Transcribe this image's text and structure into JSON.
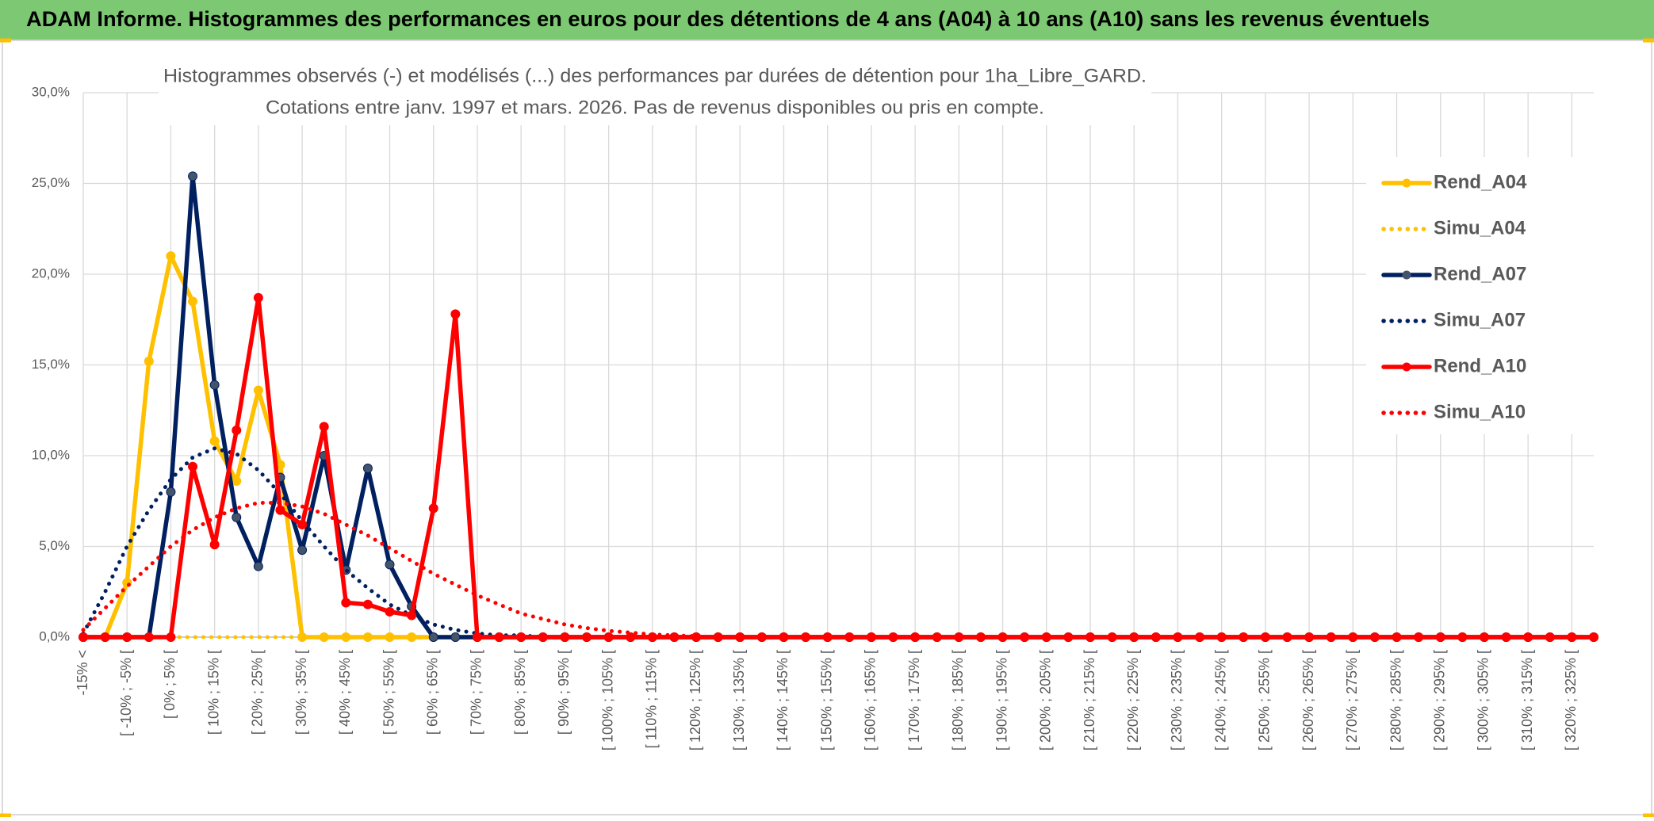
{
  "header": {
    "title": "ADAM Informe. Histogrammes des performances en euros pour des détentions de 4 ans (A04) à 10 ans (A10) sans les revenus éventuels"
  },
  "chart_data": {
    "type": "line",
    "title": "Histogrammes observés (-) et modélisés (...) des performances par durées de détention pour 1ha_Libre_GARD.",
    "subtitle": "Cotations entre janv. 1997 et mars. 2026. Pas de revenus disponibles ou pris en compte.",
    "categories": [
      "-15% <",
      null,
      "[ -10% ; -5% [",
      null,
      "[ 0% ; 5% [",
      null,
      "[ 10% ; 15% [",
      null,
      "[ 20% ; 25% [",
      null,
      "[ 30% ; 35% [",
      null,
      "[ 40% ; 45% [",
      null,
      "[ 50% ; 55% [",
      null,
      "[ 60% ; 65% [",
      null,
      "[ 70% ; 75% [",
      null,
      "[ 80% ; 85% [",
      null,
      "[ 90% ; 95% [",
      null,
      "[ 100% ; 105% [",
      null,
      "[ 110% ; 115% [",
      null,
      "[ 120% ; 125% [",
      null,
      "[ 130% ; 135% [",
      null,
      "[ 140% ; 145% [",
      null,
      "[ 150% ; 155% [",
      null,
      "[ 160% ; 165% [",
      null,
      "[ 170% ; 175% [",
      null,
      "[ 180% ; 185% [",
      null,
      "[ 190% ; 195% [",
      null,
      "[ 200% ; 205% [",
      null,
      "[ 210% ; 215% [",
      null,
      "[ 220% ; 225% [",
      null,
      "[ 230% ; 235% [",
      null,
      "[ 240% ; 245% [",
      null,
      "[ 250% ; 255% [",
      null,
      "[ 260% ; 265% [",
      null,
      "[ 270% ; 275% [",
      null,
      "[ 280% ; 285% [",
      null,
      "[ 290% ; 295% [",
      null,
      "[ 300% ; 305% [",
      null,
      "[ 310% ; 315% [",
      null,
      "[ 320% ; 325% [",
      null
    ],
    "series": [
      {
        "name": "Rend_A04",
        "color": "#FFC000",
        "style": "solid",
        "values": [
          0,
          0,
          3.0,
          15.2,
          21.0,
          18.5,
          10.8,
          8.6,
          13.6,
          9.5,
          0,
          0,
          0,
          0,
          0,
          0,
          0,
          0,
          0,
          0,
          0,
          0,
          0,
          0,
          0,
          0,
          0,
          0,
          0,
          0,
          0,
          0,
          0,
          0,
          0,
          0,
          0,
          0,
          0,
          0,
          0,
          0,
          0,
          0,
          0,
          0,
          0,
          0,
          0,
          0,
          0,
          0,
          0,
          0,
          0,
          0,
          0,
          0,
          0,
          0,
          0,
          0,
          0,
          0,
          0,
          0,
          0,
          0,
          0,
          0
        ]
      },
      {
        "name": "Simu_A04",
        "color": "#FFC000",
        "style": "dotted",
        "values": [
          0,
          0,
          0,
          0,
          0,
          0,
          0,
          0,
          0,
          0,
          0,
          0,
          0,
          0,
          0,
          0,
          0,
          0,
          0,
          0,
          0,
          0,
          0,
          0,
          0,
          0,
          0,
          0,
          0,
          0,
          0,
          0,
          0,
          0,
          0,
          0,
          0,
          0,
          0,
          0,
          0,
          0,
          0,
          0,
          0,
          0,
          0,
          0,
          0,
          0,
          0,
          0,
          0,
          0,
          0,
          0,
          0,
          0,
          0,
          0,
          0,
          0,
          0,
          0,
          0,
          0,
          0,
          0,
          0,
          0
        ]
      },
      {
        "name": "Rend_A07",
        "color": "#002060",
        "style": "solid",
        "values": [
          0,
          0,
          0,
          0,
          8.0,
          25.4,
          13.9,
          6.6,
          3.9,
          8.8,
          4.8,
          10.0,
          3.7,
          9.3,
          4.0,
          1.7,
          0,
          0,
          0,
          0,
          0,
          0,
          0,
          0,
          0,
          0,
          0,
          0,
          0,
          0,
          0,
          0,
          0,
          0,
          0,
          0,
          0,
          0,
          0,
          0,
          0,
          0,
          0,
          0,
          0,
          0,
          0,
          0,
          0,
          0,
          0,
          0,
          0,
          0,
          0,
          0,
          0,
          0,
          0,
          0,
          0,
          0,
          0,
          0,
          0,
          0,
          0,
          0,
          0,
          0
        ]
      },
      {
        "name": "Simu_A07",
        "color": "#002060",
        "style": "dotted",
        "values": [
          0.2,
          2.5,
          5.0,
          7.0,
          8.7,
          9.9,
          10.4,
          10.1,
          9.2,
          7.9,
          6.4,
          5.0,
          3.7,
          2.7,
          1.8,
          1.2,
          0.7,
          0.4,
          0.2,
          0.1,
          0.1,
          0,
          0,
          0,
          0,
          0,
          0,
          0,
          0,
          0,
          0,
          0,
          0,
          0,
          0,
          0,
          0,
          0,
          0,
          0,
          0,
          0,
          0,
          0,
          0,
          0,
          0,
          0,
          0,
          0,
          0,
          0,
          0,
          0,
          0,
          0,
          0,
          0,
          0,
          0,
          0,
          0,
          0,
          0,
          0,
          0,
          0,
          0,
          0,
          0
        ]
      },
      {
        "name": "Rend_A10",
        "color": "#FF0000",
        "style": "solid",
        "values": [
          0,
          0,
          0,
          0,
          0,
          9.4,
          5.1,
          11.4,
          18.7,
          7.0,
          6.2,
          11.6,
          1.9,
          1.8,
          1.4,
          1.2,
          7.1,
          17.8,
          0,
          0,
          0,
          0,
          0,
          0,
          0,
          0,
          0,
          0,
          0,
          0,
          0,
          0,
          0,
          0,
          0,
          0,
          0,
          0,
          0,
          0,
          0,
          0,
          0,
          0,
          0,
          0,
          0,
          0,
          0,
          0,
          0,
          0,
          0,
          0,
          0,
          0,
          0,
          0,
          0,
          0,
          0,
          0,
          0,
          0,
          0,
          0,
          0,
          0,
          0,
          0
        ]
      },
      {
        "name": "Simu_A10",
        "color": "#FF0000",
        "style": "dotted",
        "values": [
          0.4,
          1.6,
          2.8,
          3.9,
          5.0,
          5.9,
          6.6,
          7.1,
          7.4,
          7.4,
          7.2,
          6.8,
          6.2,
          5.6,
          4.9,
          4.2,
          3.5,
          2.9,
          2.3,
          1.8,
          1.3,
          1.0,
          0.7,
          0.5,
          0.35,
          0.25,
          0.15,
          0.1,
          0.05,
          0,
          0,
          0,
          0,
          0,
          0,
          0,
          0,
          0,
          0,
          0,
          0,
          0,
          0,
          0,
          0,
          0,
          0,
          0,
          0,
          0,
          0,
          0,
          0,
          0,
          0,
          0,
          0,
          0,
          0,
          0,
          0,
          0,
          0,
          0,
          0,
          0,
          0,
          0,
          0,
          0
        ]
      }
    ],
    "ylim": [
      0,
      30
    ],
    "yticks": [
      {
        "value": 0,
        "label": "0,0%"
      },
      {
        "value": 5,
        "label": "5,0%"
      },
      {
        "value": 10,
        "label": "10,0%"
      },
      {
        "value": 15,
        "label": "15,0%"
      },
      {
        "value": 20,
        "label": "20,0%"
      },
      {
        "value": 25,
        "label": "25,0%"
      },
      {
        "value": 30,
        "label": "30,0%"
      }
    ],
    "grid": true,
    "legend": "right"
  }
}
